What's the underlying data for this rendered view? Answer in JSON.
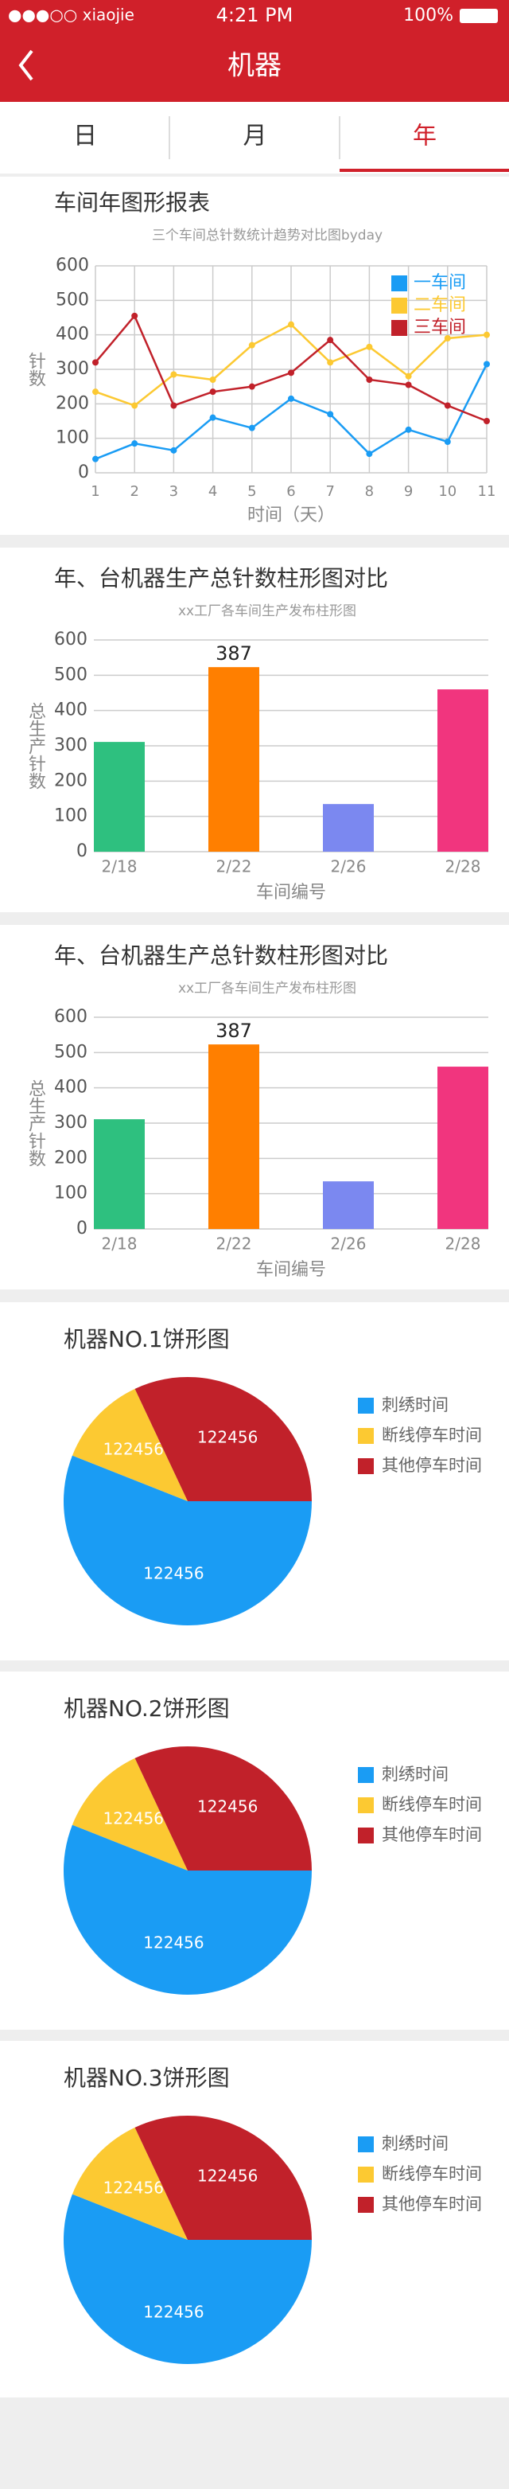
{
  "status": {
    "carrier": "●●●○○ xiaojie",
    "time": "4:21 PM",
    "battery": "100%"
  },
  "nav": {
    "title": "机器"
  },
  "tabs": {
    "items": [
      "日",
      "月",
      "年"
    ],
    "selected": 2
  },
  "chart_data": [
    {
      "type": "line",
      "title": "车间年图形报表",
      "subtitle": "三个车间总针数统计趋势对比图byday",
      "ylabel": "针数",
      "xlabel": "时间（天）",
      "x": [
        1,
        2,
        3,
        4,
        5,
        6,
        7,
        8,
        9,
        10,
        11
      ],
      "xlim": [
        1,
        11
      ],
      "xticks": [
        1,
        2,
        3,
        4,
        5,
        6,
        7,
        8,
        9,
        10,
        11
      ],
      "ylim": [
        0,
        600
      ],
      "yticks": [
        0,
        100,
        200,
        300,
        400,
        500,
        600
      ],
      "grid": true,
      "legend": "upper right",
      "series": [
        {
          "name": "一车间",
          "color": "#1a9cf4",
          "values": [
            40,
            85,
            65,
            160,
            130,
            215,
            170,
            55,
            125,
            90,
            315
          ]
        },
        {
          "name": "二车间",
          "color": "#fcc932",
          "values": [
            235,
            195,
            285,
            270,
            370,
            430,
            320,
            365,
            280,
            390,
            400
          ]
        },
        {
          "name": "三车间",
          "color": "#c1212a",
          "values": [
            320,
            455,
            195,
            235,
            250,
            290,
            385,
            270,
            255,
            195,
            150
          ]
        }
      ]
    },
    {
      "type": "bar",
      "title": "年、台机器生产总针数柱形图对比",
      "subtitle": "xx工厂各车间生产发布柱形图",
      "ylabel": "总生产针数",
      "xlabel": "车间编号",
      "categories": [
        "2/18",
        "2/22",
        "2/26",
        "2/28"
      ],
      "values": [
        311,
        523,
        135,
        460
      ],
      "colors": [
        "#2ec07f",
        "#ff7f00",
        "#7b88f0",
        "#f1357e"
      ],
      "ylim": [
        0,
        600
      ],
      "yticks": [
        0,
        100,
        200,
        300,
        400,
        500,
        600
      ],
      "grid": true,
      "annotation": "387"
    },
    {
      "type": "bar",
      "title": "年、台机器生产总针数柱形图对比",
      "subtitle": "xx工厂各车间生产发布柱形图",
      "ylabel": "总生产针数",
      "xlabel": "车间编号",
      "categories": [
        "2/18",
        "2/22",
        "2/26",
        "2/28"
      ],
      "values": [
        311,
        523,
        135,
        460
      ],
      "colors": [
        "#2ec07f",
        "#ff7f00",
        "#7b88f0",
        "#f1357e"
      ],
      "ylim": [
        0,
        600
      ],
      "yticks": [
        0,
        100,
        200,
        300,
        400,
        500,
        600
      ],
      "grid": true,
      "annotation": "387"
    },
    {
      "type": "pie",
      "title": "机器NO.1饼形图",
      "categories": [
        "刺绣时间",
        "断线停车时间",
        "其他停车时间"
      ],
      "values": [
        56,
        12,
        32
      ],
      "colors": [
        "#1a9cf4",
        "#fcc932",
        "#c1212a"
      ],
      "slice_labels": [
        "122456",
        "122456",
        "122456"
      ],
      "legend": "right"
    },
    {
      "type": "pie",
      "title": "机器NO.2饼形图",
      "categories": [
        "刺绣时间",
        "断线停车时间",
        "其他停车时间"
      ],
      "values": [
        56,
        12,
        32
      ],
      "colors": [
        "#1a9cf4",
        "#fcc932",
        "#c1212a"
      ],
      "slice_labels": [
        "122456",
        "122456",
        "122456"
      ],
      "legend": "right"
    },
    {
      "type": "pie",
      "title": "机器NO.3饼形图",
      "categories": [
        "刺绣时间",
        "断线停车时间",
        "其他停车时间"
      ],
      "values": [
        56,
        12,
        32
      ],
      "colors": [
        "#1a9cf4",
        "#fcc932",
        "#c1212a"
      ],
      "slice_labels": [
        "122456",
        "122456",
        "122456"
      ],
      "legend": "right"
    }
  ]
}
